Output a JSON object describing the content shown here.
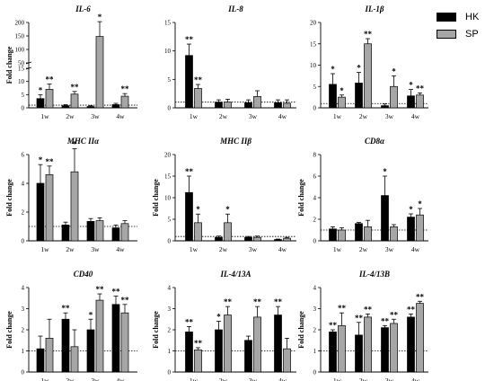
{
  "legend": {
    "series": [
      {
        "name": "HK",
        "color": "#000000"
      },
      {
        "name": "SP",
        "color": "#a6a6a6"
      }
    ]
  },
  "chart_data": [
    {
      "type": "bar",
      "title": "IL-6",
      "ylabel": "Fold change",
      "categories": [
        "1w",
        "2w",
        "3w",
        "4w"
      ],
      "y_ticks": [
        "0",
        "5",
        "10",
        "15",
        "50",
        "100",
        "150",
        "200"
      ],
      "axis_break": true,
      "series": [
        {
          "name": "HK",
          "values": [
            3.5,
            0.8,
            0.5,
            1.2
          ],
          "errors": [
            1.5,
            0.4,
            0.3,
            0.5
          ],
          "sig": [
            "*",
            "",
            "",
            ""
          ]
        },
        {
          "name": "SP",
          "values": [
            7.0,
            5.2,
            148,
            4.4
          ],
          "errors": [
            2.0,
            1.0,
            55,
            1.0
          ],
          "sig": [
            "**",
            "**",
            "*",
            "**"
          ]
        }
      ]
    },
    {
      "type": "bar",
      "title": "IL-8",
      "ylabel": "",
      "categories": [
        "1w",
        "2w",
        "3w",
        "4w"
      ],
      "y_ticks": [
        "0",
        "5",
        "10",
        "15"
      ],
      "ylim": [
        0,
        15
      ],
      "series": [
        {
          "name": "HK",
          "values": [
            9.2,
            1.0,
            0.9,
            0.9
          ],
          "errors": [
            2.0,
            0.4,
            0.5,
            0.5
          ],
          "sig": [
            "**",
            "",
            "",
            ""
          ]
        },
        {
          "name": "SP",
          "values": [
            3.4,
            1.0,
            2.0,
            0.8
          ],
          "errors": [
            0.7,
            0.5,
            1.0,
            0.6
          ],
          "sig": [
            "**",
            "",
            "",
            ""
          ]
        }
      ]
    },
    {
      "type": "bar",
      "title": "IL-1β",
      "ylabel": "",
      "categories": [
        "1w",
        "2w",
        "3w",
        "4w"
      ],
      "y_ticks": [
        "0",
        "5",
        "10",
        "15",
        "20"
      ],
      "ylim": [
        0,
        20
      ],
      "series": [
        {
          "name": "HK",
          "values": [
            5.5,
            5.8,
            0.5,
            2.8
          ],
          "errors": [
            2.5,
            2.5,
            0.4,
            1.5
          ],
          "sig": [
            "*",
            "*",
            "",
            "*"
          ]
        },
        {
          "name": "SP",
          "values": [
            2.5,
            15.0,
            5.0,
            3.0
          ],
          "errors": [
            0.5,
            1.2,
            2.5,
            0.5
          ],
          "sig": [
            "*",
            "**",
            "*",
            "**"
          ]
        }
      ]
    },
    {
      "type": "bar",
      "title": "MHC IIα",
      "ylabel": "Fold change",
      "categories": [
        "1w",
        "2w",
        "3w",
        "4w"
      ],
      "y_ticks": [
        "0",
        "2",
        "4",
        "6"
      ],
      "ylim": [
        0,
        6
      ],
      "series": [
        {
          "name": "HK",
          "values": [
            4.0,
            1.1,
            1.35,
            0.9
          ],
          "errors": [
            1.3,
            0.2,
            0.2,
            0.2
          ],
          "sig": [
            "*",
            "",
            "",
            ""
          ]
        },
        {
          "name": "SP",
          "values": [
            4.6,
            4.8,
            1.4,
            1.2
          ],
          "errors": [
            0.6,
            1.6,
            0.2,
            0.2
          ],
          "sig": [
            "**",
            "*",
            "",
            ""
          ]
        }
      ]
    },
    {
      "type": "bar",
      "title": "MHC IIβ",
      "ylabel": "Fold change",
      "categories": [
        "1w",
        "2w",
        "3w",
        "4w"
      ],
      "y_ticks": [
        "0",
        "5",
        "10",
        "15",
        "20"
      ],
      "ylim": [
        0,
        20
      ],
      "series": [
        {
          "name": "HK",
          "values": [
            11.2,
            0.8,
            0.8,
            0.3
          ],
          "errors": [
            3.8,
            0.3,
            0.2,
            0.1
          ],
          "sig": [
            "**",
            "",
            "",
            ""
          ]
        },
        {
          "name": "SP",
          "values": [
            4.2,
            4.2,
            0.8,
            0.6
          ],
          "errors": [
            2.0,
            2.0,
            0.3,
            0.2
          ],
          "sig": [
            "*",
            "*",
            "",
            ""
          ]
        }
      ]
    },
    {
      "type": "bar",
      "title": "CD8α",
      "ylabel": "Fold change",
      "categories": [
        "1w",
        "2w",
        "3w",
        "4w"
      ],
      "y_ticks": [
        "0",
        "2",
        "4",
        "6",
        "8"
      ],
      "ylim": [
        0,
        8
      ],
      "series": [
        {
          "name": "HK",
          "values": [
            1.1,
            1.6,
            4.2,
            2.2
          ],
          "errors": [
            0.2,
            0.1,
            1.8,
            0.3
          ],
          "sig": [
            "",
            "",
            "*",
            "*"
          ]
        },
        {
          "name": "SP",
          "values": [
            1.0,
            1.3,
            1.3,
            2.4
          ],
          "errors": [
            0.2,
            0.6,
            0.2,
            0.6
          ],
          "sig": [
            "",
            "",
            "",
            "*"
          ]
        }
      ]
    },
    {
      "type": "bar",
      "title": "CD40",
      "ylabel": "Fold change",
      "categories": [
        "1w",
        "2w",
        "3w",
        "4w"
      ],
      "y_ticks": [
        "0",
        "1",
        "2",
        "3",
        "4"
      ],
      "ylim": [
        0,
        4
      ],
      "series": [
        {
          "name": "HK",
          "values": [
            1.1,
            2.5,
            2.0,
            3.2
          ],
          "errors": [
            0.6,
            0.3,
            0.5,
            0.4
          ],
          "sig": [
            "",
            "**",
            "*",
            "**"
          ]
        },
        {
          "name": "SP",
          "values": [
            1.6,
            1.2,
            3.4,
            2.8
          ],
          "errors": [
            0.9,
            0.8,
            0.3,
            0.4
          ],
          "sig": [
            "",
            "",
            "**",
            "**"
          ]
        }
      ]
    },
    {
      "type": "bar",
      "title": "IL-4/13A",
      "ylabel": "Fold change",
      "categories": [
        "1w",
        "2w",
        "3w",
        "4w"
      ],
      "y_ticks": [
        "0",
        "1",
        "2",
        "3",
        "4"
      ],
      "ylim": [
        0,
        4
      ],
      "series": [
        {
          "name": "HK",
          "values": [
            1.9,
            2.0,
            1.5,
            2.7
          ],
          "errors": [
            0.25,
            0.4,
            0.2,
            0.4
          ],
          "sig": [
            "**",
            "*",
            "",
            "**"
          ]
        },
        {
          "name": "SP",
          "values": [
            1.05,
            2.7,
            2.6,
            1.1
          ],
          "errors": [
            0.1,
            0.4,
            0.5,
            0.5
          ],
          "sig": [
            "**",
            "**",
            "**",
            ""
          ]
        }
      ]
    },
    {
      "type": "bar",
      "title": "IL-4/13B",
      "ylabel": "Fold change",
      "categories": [
        "1w",
        "2w",
        "3w",
        "4w"
      ],
      "y_ticks": [
        "0",
        "1",
        "2",
        "3",
        "4"
      ],
      "ylim": [
        0,
        4
      ],
      "series": [
        {
          "name": "HK",
          "values": [
            1.9,
            1.75,
            2.1,
            2.6
          ],
          "errors": [
            0.1,
            0.6,
            0.1,
            0.15
          ],
          "sig": [
            "**",
            "**",
            "**",
            "**"
          ]
        },
        {
          "name": "SP",
          "values": [
            2.2,
            2.6,
            2.3,
            3.25
          ],
          "errors": [
            0.6,
            0.15,
            0.2,
            0.1
          ],
          "sig": [
            "**",
            "**",
            "**",
            "**"
          ]
        }
      ]
    }
  ]
}
